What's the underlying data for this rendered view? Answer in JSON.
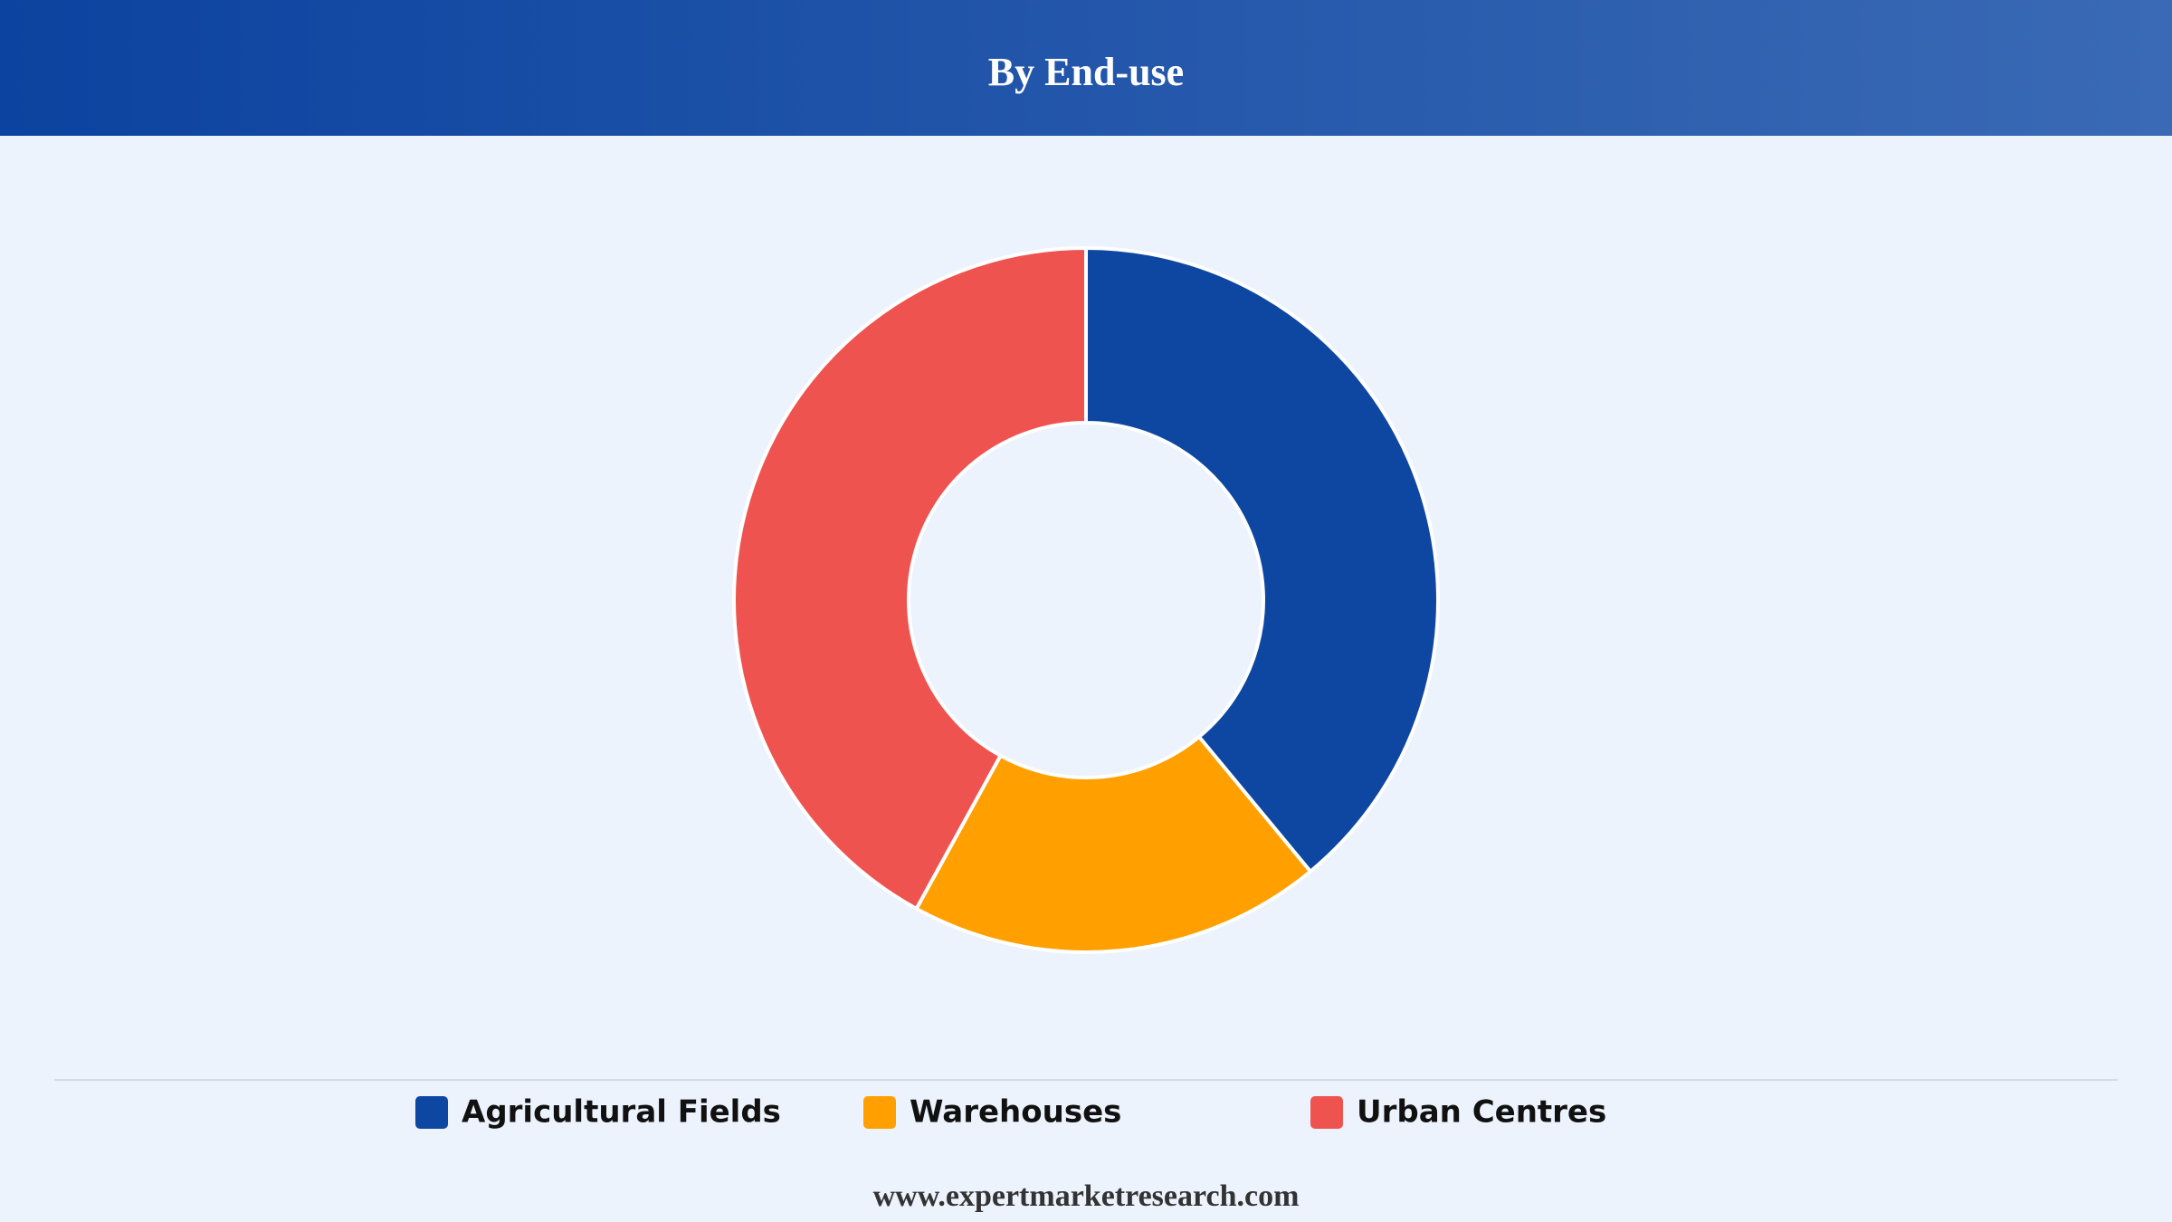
{
  "chart_data": {
    "type": "donut",
    "title": "By End-use",
    "categories": [
      "Agricultural Fields",
      "Warehouses",
      "Urban Centres"
    ],
    "values": [
      39,
      19,
      42
    ],
    "colors": [
      "#0d47a1",
      "#ffa000",
      "#ef5350"
    ]
  },
  "footer": "www.expertmarketresearch.com"
}
